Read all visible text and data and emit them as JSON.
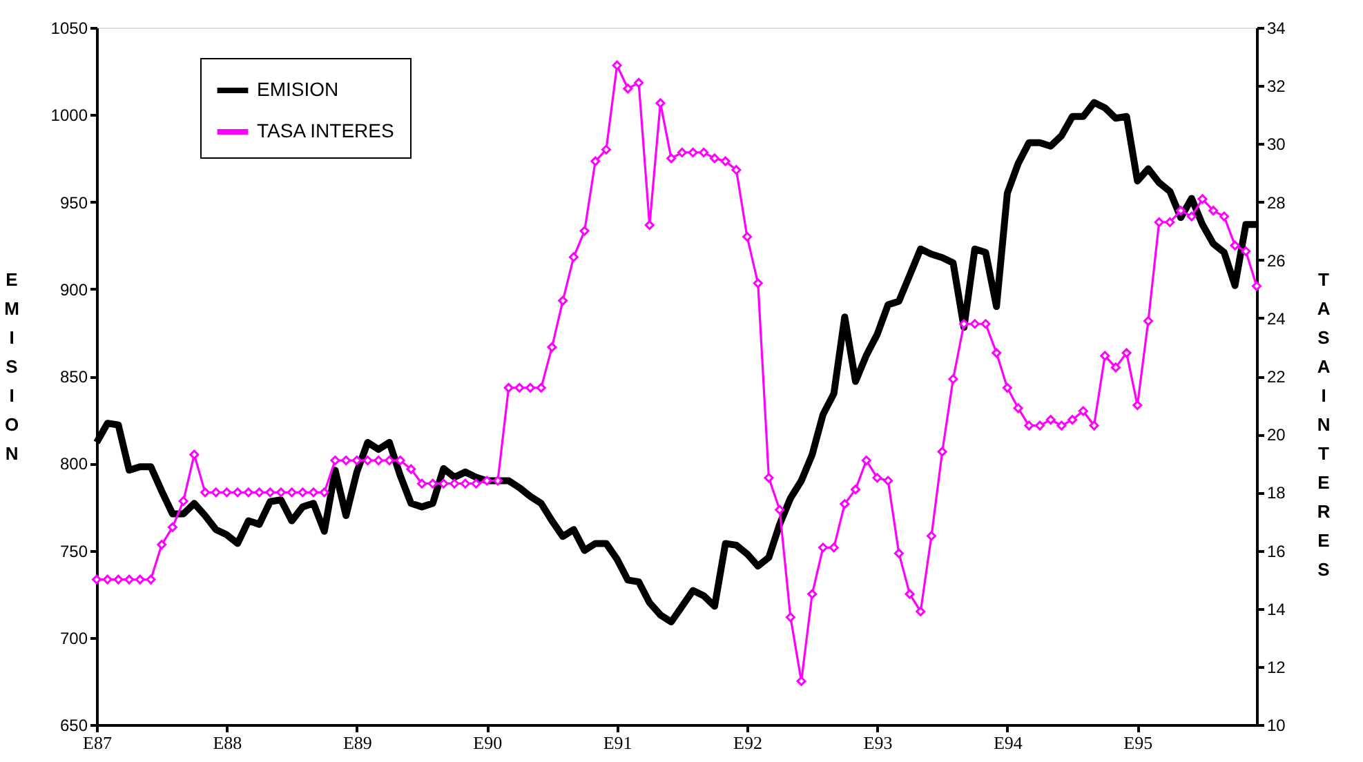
{
  "chart_data": {
    "type": "line",
    "categories": [
      "E87",
      null,
      null,
      null,
      null,
      null,
      null,
      null,
      null,
      null,
      null,
      null,
      "E88",
      null,
      null,
      null,
      null,
      null,
      null,
      null,
      null,
      null,
      null,
      null,
      "E89",
      null,
      null,
      null,
      null,
      null,
      null,
      null,
      null,
      null,
      null,
      null,
      "E90",
      null,
      null,
      null,
      null,
      null,
      null,
      null,
      null,
      null,
      null,
      null,
      "E91",
      null,
      null,
      null,
      null,
      null,
      null,
      null,
      null,
      null,
      null,
      null,
      "E92",
      null,
      null,
      null,
      null,
      null,
      null,
      null,
      null,
      null,
      null,
      null,
      "E93",
      null,
      null,
      null,
      null,
      null,
      null,
      null,
      null,
      null,
      null,
      null,
      "E94",
      null,
      null,
      null,
      null,
      null,
      null,
      null,
      null,
      null,
      null,
      null,
      "E95",
      null,
      null,
      null,
      null,
      null,
      null,
      null,
      null,
      null,
      null,
      null
    ],
    "ylabel": "EMISION",
    "y2label": "TASA INTERES",
    "ylim": [
      650,
      1050
    ],
    "yticks": [
      650,
      700,
      750,
      800,
      850,
      900,
      950,
      1000,
      1050
    ],
    "y2lim": [
      10,
      34
    ],
    "y2ticks": [
      10,
      12,
      14,
      16,
      18,
      20,
      22,
      24,
      26,
      28,
      30,
      32,
      34
    ],
    "grid": false,
    "legend": "top left",
    "series": [
      {
        "name": "EMISION",
        "color": "#000000",
        "marker": "none",
        "values": [
          812,
          823,
          822,
          796,
          798,
          798,
          784,
          771,
          771,
          777,
          770,
          762,
          759,
          754,
          767,
          765,
          778,
          779,
          767,
          775,
          777,
          761,
          796,
          770,
          795,
          812,
          808,
          812,
          793,
          777,
          775,
          777,
          797,
          792,
          795,
          792,
          790,
          790,
          790,
          786,
          781,
          777,
          767,
          758,
          762,
          750,
          754,
          754,
          745,
          733,
          732,
          720,
          713,
          709,
          718,
          727,
          724,
          718,
          754,
          753,
          748,
          741,
          746,
          765,
          780,
          790,
          805,
          828,
          840,
          884,
          847,
          862,
          874,
          891,
          893,
          908,
          923,
          920,
          918,
          915,
          878,
          923,
          921,
          890,
          955,
          972,
          984,
          984,
          982,
          988,
          999,
          999,
          1007,
          1004,
          998,
          999,
          962,
          969,
          961,
          956,
          941,
          952,
          937,
          926,
          921,
          902,
          937,
          937
        ]
      },
      {
        "name": "TASA INTERES",
        "color": "#ff00ff",
        "axis": "y2",
        "marker": "diamond",
        "values": [
          15,
          15,
          15,
          15,
          15,
          15,
          16.2,
          16.8,
          17.7,
          19.3,
          18,
          18,
          18,
          18,
          18,
          18,
          18,
          18,
          18,
          18,
          18,
          18,
          19.1,
          19.1,
          19.1,
          19.1,
          19.1,
          19.1,
          19.1,
          18.8,
          18.3,
          18.3,
          18.3,
          18.3,
          18.3,
          18.3,
          18.4,
          18.4,
          21.6,
          21.6,
          21.6,
          21.6,
          23,
          24.6,
          26.1,
          27,
          29.4,
          29.8,
          32.7,
          31.9,
          32.1,
          27.2,
          31.4,
          29.5,
          29.7,
          29.7,
          29.7,
          29.5,
          29.4,
          29.1,
          26.8,
          25.2,
          18.5,
          17.4,
          13.7,
          11.5,
          14.5,
          16.1,
          16.1,
          17.6,
          18.1,
          19.1,
          18.5,
          18.4,
          15.9,
          14.5,
          13.9,
          16.5,
          19.4,
          21.9,
          23.8,
          23.8,
          23.8,
          22.8,
          21.6,
          20.9,
          20.3,
          20.3,
          20.5,
          20.3,
          20.5,
          20.8,
          20.3,
          22.7,
          22.3,
          22.8,
          21,
          23.9,
          27.3,
          27.3,
          27.7,
          27.5,
          28.1,
          27.7,
          27.5,
          26.5,
          26.3,
          25.1
        ]
      }
    ]
  }
}
